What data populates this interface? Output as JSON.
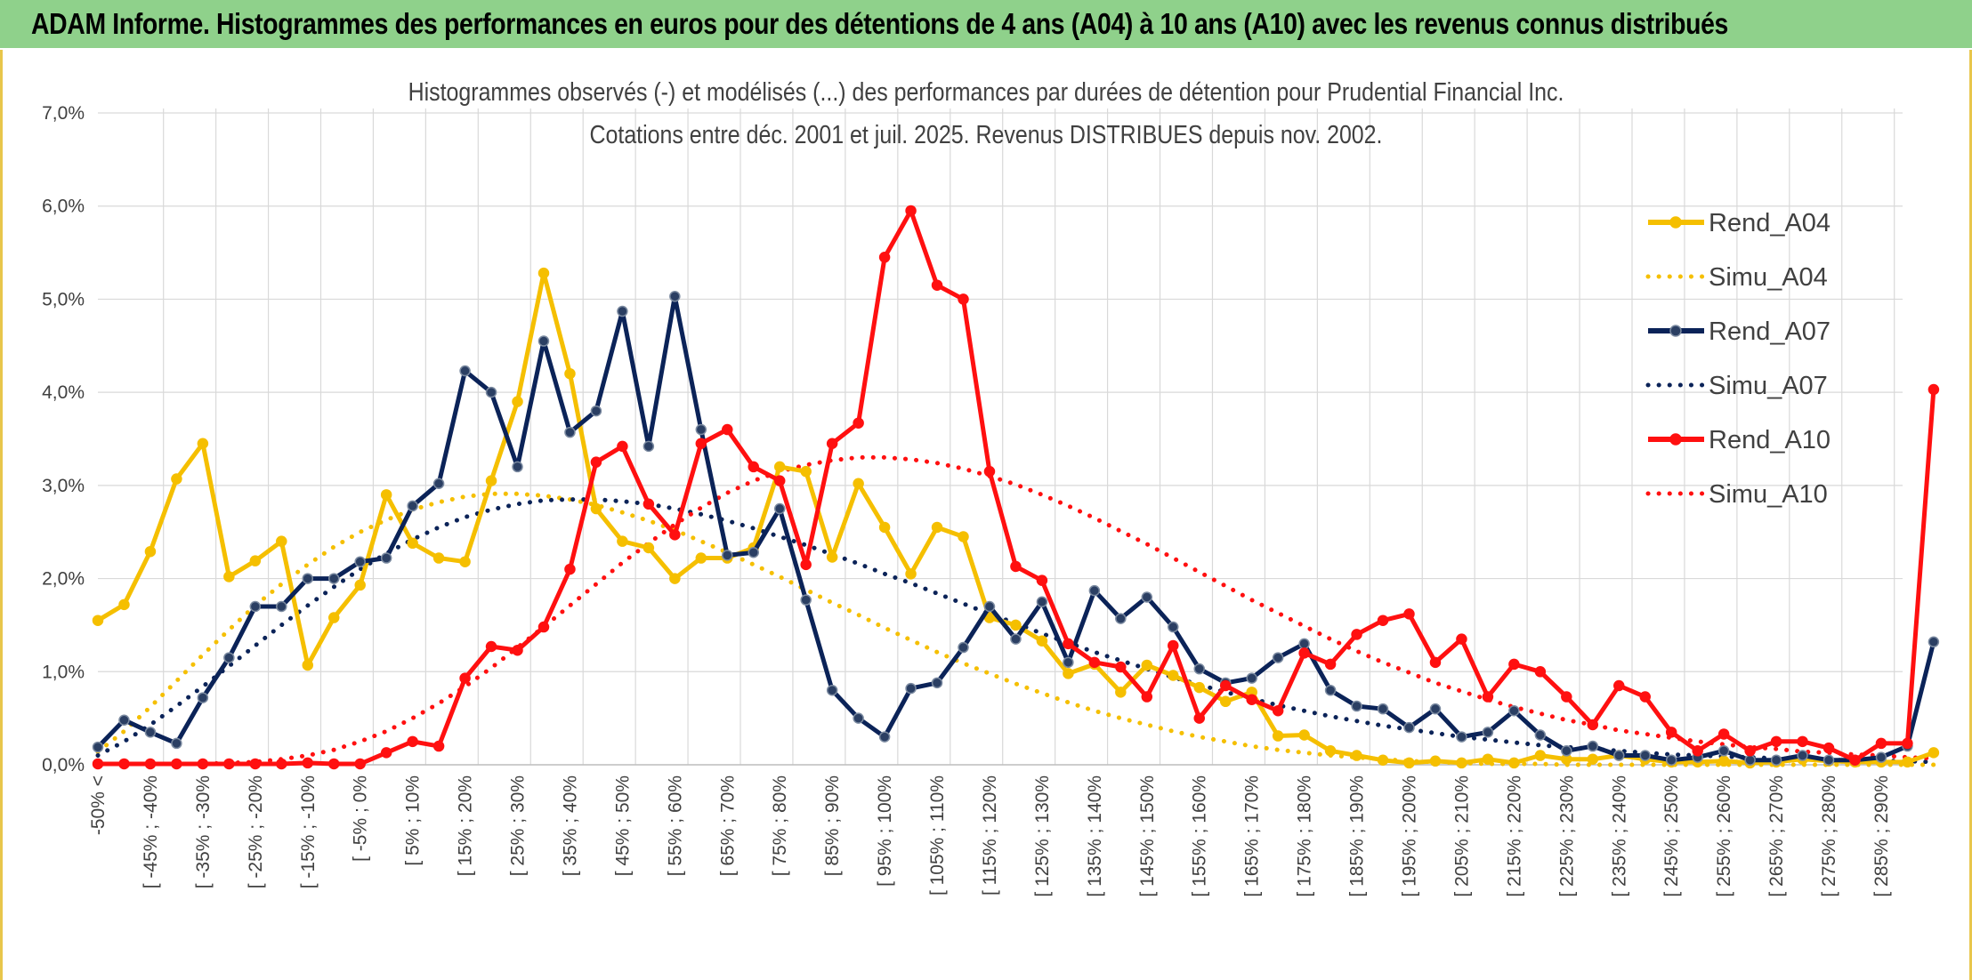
{
  "banner": {
    "title": "ADAM Informe. Histogrammes des performances en euros pour des détentions de 4 ans (A04) à 10 ans (A10) avec les revenus connus distribués"
  },
  "colors": {
    "banner_bg": "#8fd18b",
    "a04": "#f5bf00",
    "a07": "#0b2358",
    "a10": "#ff1010",
    "grid": "#d9d9d9",
    "text": "#404040"
  },
  "chart_data": {
    "type": "line",
    "title": "Histogrammes observés (-) et modélisés (...) des performances par durées de détention pour Prudential Financial Inc.",
    "subtitle": "Cotations entre déc. 2001 et juil. 2025. Revenus DISTRIBUES depuis nov. 2002.",
    "xlabel": "",
    "ylabel": "",
    "ylim": [
      0,
      0.07
    ],
    "y_ticks": [
      "0,0%",
      "1,0%",
      "2,0%",
      "3,0%",
      "4,0%",
      "5,0%",
      "6,0%",
      "7,0%"
    ],
    "grid": true,
    "legend_position": "right",
    "x_tick_labels": [
      "-50% <",
      "[ -45% ; -40%",
      "[ -35% ; -30%",
      "[ -25% ; -20%",
      "[ -15% ; -10%",
      "[ -5% ; 0%",
      "[ 5% ; 10%",
      "[ 15% ; 20%",
      "[ 25% ; 30%",
      "[ 35% ; 40%",
      "[ 45% ; 50%",
      "[ 55% ; 60%",
      "[ 65% ; 70%",
      "[ 75% ; 80%",
      "[ 85% ; 90%",
      "[ 95% ; 100%",
      "[ 105% ; 110%",
      "[ 115% ; 120%",
      "[ 125% ; 130%",
      "[ 135% ; 140%",
      "[ 145% ; 150%",
      "[ 155% ; 160%",
      "[ 165% ; 170%",
      "[ 175% ; 180%",
      "[ 185% ; 190%",
      "[ 195% ; 200%",
      "[ 205% ; 210%",
      "[ 215% ; 220%",
      "[ 225% ; 230%",
      "[ 235% ; 240%",
      "[ 245% ; 250%",
      "[ 255% ; 260%",
      "[ 265% ; 270%",
      "[ 275% ; 280%",
      "[ 285% ; 290%"
    ],
    "series": [
      {
        "name": "Rend_A04",
        "style": "solid",
        "color": "#f5bf00",
        "values": [
          0.0155,
          0.0172,
          0.0229,
          0.0307,
          0.0345,
          0.0202,
          0.0219,
          0.024,
          0.0107,
          0.0158,
          0.0193,
          0.029,
          0.0238,
          0.0222,
          0.0218,
          0.0305,
          0.039,
          0.0528,
          0.042,
          0.0275,
          0.024,
          0.0233,
          0.02,
          0.0222,
          0.0222,
          0.0233,
          0.032,
          0.0315,
          0.0223,
          0.0302,
          0.0255,
          0.0205,
          0.0255,
          0.0245,
          0.0158,
          0.015,
          0.0133,
          0.0098,
          0.0108,
          0.0078,
          0.0107,
          0.0096,
          0.0083,
          0.0068,
          0.0078,
          0.0031,
          0.0032,
          0.0015,
          0.001,
          0.0005,
          0.0002,
          0.0004,
          0.0002,
          0.0006,
          0.0002,
          0.001,
          0.0006,
          0.0006,
          0.001,
          0.0006,
          0.0003,
          0.0003,
          0.0004,
          0.0002,
          0.0003,
          0.0006,
          0.0004,
          0.0003,
          0.0003,
          0.0003,
          0.0013
        ]
      },
      {
        "name": "Simu_A04",
        "style": "dotted",
        "color": "#f5bf00",
        "values": [
          0.0014,
          0.0036,
          0.0062,
          0.009,
          0.0118,
          0.0145,
          0.0171,
          0.0194,
          0.0215,
          0.0234,
          0.025,
          0.0263,
          0.0274,
          0.0282,
          0.0288,
          0.0291,
          0.0291,
          0.0289,
          0.0285,
          0.0279,
          0.0271,
          0.0262,
          0.0252,
          0.024,
          0.0228,
          0.0215,
          0.0202,
          0.0188,
          0.0174,
          0.0161,
          0.0147,
          0.0134,
          0.0121,
          0.0109,
          0.0098,
          0.0087,
          0.0077,
          0.0067,
          0.0058,
          0.005,
          0.0043,
          0.0036,
          0.003,
          0.0025,
          0.002,
          0.0016,
          0.0013,
          0.001,
          0.0008,
          0.0006,
          0.0004,
          0.0003,
          0.0002,
          0.0001,
          0.0001,
          0.0001,
          0.0,
          0.0,
          0.0,
          0.0,
          0.0,
          0.0,
          0.0,
          0.0,
          0.0,
          0.0,
          0.0,
          0.0,
          0.0,
          0.0,
          0.0
        ]
      },
      {
        "name": "Rend_A07",
        "style": "solid",
        "color": "#0b2358",
        "values": [
          0.0019,
          0.0048,
          0.0035,
          0.0023,
          0.0072,
          0.0115,
          0.017,
          0.017,
          0.02,
          0.02,
          0.0218,
          0.0222,
          0.0278,
          0.0302,
          0.0423,
          0.04,
          0.032,
          0.0455,
          0.0357,
          0.038,
          0.0487,
          0.0342,
          0.0503,
          0.036,
          0.0225,
          0.0228,
          0.0275,
          0.0177,
          0.008,
          0.005,
          0.003,
          0.0082,
          0.0088,
          0.0126,
          0.017,
          0.0135,
          0.0175,
          0.011,
          0.0187,
          0.0157,
          0.018,
          0.0148,
          0.0103,
          0.0088,
          0.0093,
          0.0115,
          0.013,
          0.008,
          0.0063,
          0.006,
          0.004,
          0.006,
          0.003,
          0.0035,
          0.0058,
          0.0032,
          0.0015,
          0.002,
          0.001,
          0.001,
          0.0005,
          0.0008,
          0.0015,
          0.0005,
          0.0005,
          0.001,
          0.0005,
          0.0005,
          0.0008,
          0.002,
          0.0132
        ]
      },
      {
        "name": "Simu_A07",
        "style": "dotted",
        "color": "#0b2358",
        "values": [
          0.001,
          0.0025,
          0.0043,
          0.0063,
          0.0084,
          0.0106,
          0.0128,
          0.015,
          0.0171,
          0.0191,
          0.021,
          0.0227,
          0.0242,
          0.0255,
          0.0266,
          0.0274,
          0.028,
          0.0284,
          0.0285,
          0.0285,
          0.0283,
          0.028,
          0.0275,
          0.0269,
          0.0262,
          0.0254,
          0.0245,
          0.0236,
          0.0226,
          0.0216,
          0.0205,
          0.0195,
          0.0184,
          0.0173,
          0.0162,
          0.0152,
          0.0141,
          0.0131,
          0.0121,
          0.0112,
          0.0103,
          0.0094,
          0.0086,
          0.0078,
          0.0071,
          0.0064,
          0.0058,
          0.0052,
          0.0047,
          0.0042,
          0.0038,
          0.0034,
          0.003,
          0.0027,
          0.0024,
          0.0021,
          0.0019,
          0.0017,
          0.0015,
          0.0013,
          0.0011,
          0.001,
          0.0009,
          0.0008,
          0.0007,
          0.0006,
          0.0005,
          0.0005,
          0.0004,
          0.0004,
          0.0003
        ]
      },
      {
        "name": "Rend_A10",
        "style": "solid",
        "color": "#ff1010",
        "values": [
          0.0001,
          0.0001,
          0.0001,
          0.0001,
          0.0001,
          0.0001,
          0.0001,
          0.0001,
          0.0002,
          0.0001,
          0.0001,
          0.0013,
          0.0025,
          0.002,
          0.0093,
          0.0127,
          0.0123,
          0.0148,
          0.021,
          0.0325,
          0.0342,
          0.028,
          0.0247,
          0.0345,
          0.036,
          0.032,
          0.0305,
          0.0215,
          0.0345,
          0.0367,
          0.0545,
          0.0595,
          0.0515,
          0.05,
          0.0315,
          0.0213,
          0.0198,
          0.013,
          0.011,
          0.0105,
          0.0073,
          0.0128,
          0.005,
          0.0085,
          0.007,
          0.0058,
          0.012,
          0.0108,
          0.014,
          0.0155,
          0.0162,
          0.011,
          0.0135,
          0.0073,
          0.0108,
          0.01,
          0.0073,
          0.0043,
          0.0085,
          0.0073,
          0.0035,
          0.0015,
          0.0033,
          0.0015,
          0.0025,
          0.0025,
          0.0018,
          0.0005,
          0.0023,
          0.0023,
          0.0403
        ]
      },
      {
        "name": "Simu_A10",
        "style": "dotted",
        "color": "#ff1010",
        "values": [
          0.0001,
          0.0001,
          0.0001,
          0.0001,
          0.0001,
          0.0002,
          0.0003,
          0.0006,
          0.001,
          0.0016,
          0.0025,
          0.0036,
          0.005,
          0.0066,
          0.0084,
          0.0104,
          0.0126,
          0.0148,
          0.0171,
          0.0194,
          0.0217,
          0.0238,
          0.0258,
          0.0276,
          0.0292,
          0.0305,
          0.0315,
          0.0322,
          0.0327,
          0.033,
          0.033,
          0.0328,
          0.0324,
          0.0318,
          0.031,
          0.0301,
          0.029,
          0.0278,
          0.0265,
          0.0251,
          0.0237,
          0.0222,
          0.0207,
          0.0192,
          0.0177,
          0.0163,
          0.0149,
          0.0135,
          0.0122,
          0.011,
          0.0099,
          0.0088,
          0.0079,
          0.007,
          0.0062,
          0.0055,
          0.0048,
          0.0043,
          0.0037,
          0.0033,
          0.0029,
          0.0025,
          0.0022,
          0.0019,
          0.0017,
          0.0014,
          0.0013,
          0.0011,
          0.001,
          0.0008,
          0.0007
        ]
      }
    ]
  }
}
